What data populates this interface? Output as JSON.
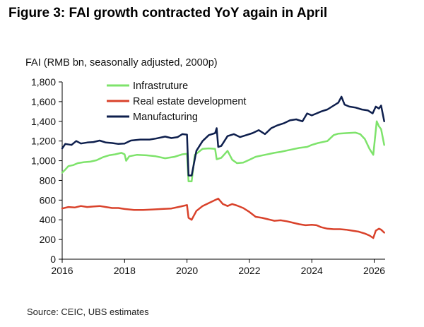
{
  "figure": {
    "title": "Figure 3: FAI growth contracted YoY again in April",
    "source": "Source: CEIC, UBS estimates"
  },
  "chart_data": {
    "type": "line",
    "title": "Figure 3: FAI growth contracted YoY again in April",
    "ylabel": "FAI (RMB bn, seasonally adjusted, 2000p)",
    "xlabel": "",
    "xlim": [
      2016,
      2026.35
    ],
    "ylim": [
      0,
      1800
    ],
    "xticks": [
      2016,
      2018,
      2020,
      2022,
      2024,
      2026
    ],
    "yticks": [
      0,
      200,
      400,
      600,
      800,
      1000,
      1200,
      1400,
      1600,
      1800
    ],
    "ytick_labels": [
      "0",
      "200",
      "400",
      "600",
      "800",
      "1,000",
      "1,200",
      "1,400",
      "1,600",
      "1,800"
    ],
    "grid": false,
    "legend": "top-left",
    "colors": {
      "infrastructure": "#7ee36b",
      "real_estate": "#d9422b",
      "manufacturing": "#0e1f4d"
    },
    "series": [
      {
        "name": "Infrastruture",
        "key": "infrastructure",
        "points": [
          [
            2016.0,
            880
          ],
          [
            2016.1,
            910
          ],
          [
            2016.2,
            945
          ],
          [
            2016.35,
            955
          ],
          [
            2016.5,
            975
          ],
          [
            2016.7,
            985
          ],
          [
            2016.9,
            990
          ],
          [
            2017.1,
            1005
          ],
          [
            2017.3,
            1035
          ],
          [
            2017.5,
            1055
          ],
          [
            2017.7,
            1065
          ],
          [
            2017.9,
            1080
          ],
          [
            2018.0,
            1065
          ],
          [
            2018.05,
            1000
          ],
          [
            2018.15,
            1045
          ],
          [
            2018.4,
            1060
          ],
          [
            2018.7,
            1055
          ],
          [
            2019.0,
            1045
          ],
          [
            2019.3,
            1025
          ],
          [
            2019.6,
            1040
          ],
          [
            2019.85,
            1065
          ],
          [
            2020.0,
            1070
          ],
          [
            2020.05,
            790
          ],
          [
            2020.15,
            790
          ],
          [
            2020.25,
            1060
          ],
          [
            2020.5,
            1120
          ],
          [
            2020.7,
            1125
          ],
          [
            2020.9,
            1120
          ],
          [
            2020.95,
            1015
          ],
          [
            2021.1,
            1030
          ],
          [
            2021.3,
            1100
          ],
          [
            2021.45,
            1010
          ],
          [
            2021.6,
            975
          ],
          [
            2021.8,
            980
          ],
          [
            2022.0,
            1010
          ],
          [
            2022.2,
            1040
          ],
          [
            2022.5,
            1060
          ],
          [
            2022.8,
            1080
          ],
          [
            2023.0,
            1090
          ],
          [
            2023.3,
            1110
          ],
          [
            2023.6,
            1130
          ],
          [
            2023.85,
            1140
          ],
          [
            2024.0,
            1160
          ],
          [
            2024.2,
            1180
          ],
          [
            2024.5,
            1200
          ],
          [
            2024.7,
            1260
          ],
          [
            2024.85,
            1275
          ],
          [
            2025.1,
            1280
          ],
          [
            2025.4,
            1285
          ],
          [
            2025.55,
            1270
          ],
          [
            2025.7,
            1220
          ],
          [
            2025.85,
            1120
          ],
          [
            2025.97,
            1060
          ],
          [
            2026.08,
            1400
          ],
          [
            2026.15,
            1350
          ],
          [
            2026.22,
            1320
          ],
          [
            2026.32,
            1160
          ]
        ]
      },
      {
        "name": "Real estate development",
        "key": "real_estate",
        "points": [
          [
            2016.0,
            515
          ],
          [
            2016.2,
            530
          ],
          [
            2016.4,
            525
          ],
          [
            2016.6,
            540
          ],
          [
            2016.8,
            530
          ],
          [
            2017.0,
            535
          ],
          [
            2017.2,
            540
          ],
          [
            2017.4,
            530
          ],
          [
            2017.6,
            520
          ],
          [
            2017.8,
            520
          ],
          [
            2018.0,
            510
          ],
          [
            2018.3,
            500
          ],
          [
            2018.6,
            500
          ],
          [
            2018.9,
            505
          ],
          [
            2019.2,
            510
          ],
          [
            2019.5,
            515
          ],
          [
            2019.8,
            535
          ],
          [
            2020.0,
            550
          ],
          [
            2020.05,
            420
          ],
          [
            2020.15,
            400
          ],
          [
            2020.3,
            490
          ],
          [
            2020.5,
            540
          ],
          [
            2020.7,
            570
          ],
          [
            2020.9,
            600
          ],
          [
            2021.0,
            615
          ],
          [
            2021.15,
            560
          ],
          [
            2021.3,
            540
          ],
          [
            2021.45,
            560
          ],
          [
            2021.6,
            545
          ],
          [
            2021.8,
            520
          ],
          [
            2022.0,
            480
          ],
          [
            2022.2,
            430
          ],
          [
            2022.4,
            420
          ],
          [
            2022.6,
            405
          ],
          [
            2022.8,
            390
          ],
          [
            2023.0,
            395
          ],
          [
            2023.2,
            385
          ],
          [
            2023.4,
            370
          ],
          [
            2023.6,
            355
          ],
          [
            2023.8,
            345
          ],
          [
            2024.0,
            350
          ],
          [
            2024.15,
            345
          ],
          [
            2024.3,
            325
          ],
          [
            2024.5,
            310
          ],
          [
            2024.7,
            305
          ],
          [
            2024.9,
            305
          ],
          [
            2025.1,
            300
          ],
          [
            2025.3,
            290
          ],
          [
            2025.5,
            280
          ],
          [
            2025.7,
            260
          ],
          [
            2025.85,
            240
          ],
          [
            2025.97,
            215
          ],
          [
            2026.05,
            290
          ],
          [
            2026.15,
            310
          ],
          [
            2026.22,
            300
          ],
          [
            2026.32,
            270
          ]
        ]
      },
      {
        "name": "Manufacturing",
        "key": "manufacturing",
        "points": [
          [
            2016.0,
            1125
          ],
          [
            2016.1,
            1170
          ],
          [
            2016.3,
            1160
          ],
          [
            2016.45,
            1200
          ],
          [
            2016.6,
            1175
          ],
          [
            2016.8,
            1185
          ],
          [
            2017.0,
            1190
          ],
          [
            2017.2,
            1205
          ],
          [
            2017.4,
            1185
          ],
          [
            2017.6,
            1180
          ],
          [
            2017.8,
            1170
          ],
          [
            2018.0,
            1175
          ],
          [
            2018.2,
            1205
          ],
          [
            2018.5,
            1215
          ],
          [
            2018.8,
            1215
          ],
          [
            2019.0,
            1225
          ],
          [
            2019.3,
            1245
          ],
          [
            2019.5,
            1230
          ],
          [
            2019.7,
            1240
          ],
          [
            2019.85,
            1270
          ],
          [
            2020.0,
            1265
          ],
          [
            2020.05,
            850
          ],
          [
            2020.15,
            850
          ],
          [
            2020.3,
            1100
          ],
          [
            2020.5,
            1200
          ],
          [
            2020.7,
            1260
          ],
          [
            2020.9,
            1280
          ],
          [
            2020.95,
            1330
          ],
          [
            2021.0,
            1140
          ],
          [
            2021.1,
            1150
          ],
          [
            2021.3,
            1250
          ],
          [
            2021.5,
            1270
          ],
          [
            2021.7,
            1240
          ],
          [
            2021.9,
            1260
          ],
          [
            2022.1,
            1280
          ],
          [
            2022.3,
            1310
          ],
          [
            2022.5,
            1270
          ],
          [
            2022.7,
            1330
          ],
          [
            2022.9,
            1360
          ],
          [
            2023.1,
            1380
          ],
          [
            2023.3,
            1410
          ],
          [
            2023.5,
            1420
          ],
          [
            2023.7,
            1400
          ],
          [
            2023.85,
            1480
          ],
          [
            2024.0,
            1460
          ],
          [
            2024.15,
            1480
          ],
          [
            2024.3,
            1500
          ],
          [
            2024.5,
            1520
          ],
          [
            2024.7,
            1560
          ],
          [
            2024.85,
            1590
          ],
          [
            2024.95,
            1650
          ],
          [
            2025.05,
            1570
          ],
          [
            2025.2,
            1550
          ],
          [
            2025.4,
            1540
          ],
          [
            2025.6,
            1520
          ],
          [
            2025.8,
            1510
          ],
          [
            2025.95,
            1480
          ],
          [
            2026.05,
            1550
          ],
          [
            2026.15,
            1530
          ],
          [
            2026.22,
            1560
          ],
          [
            2026.32,
            1400
          ]
        ]
      }
    ]
  }
}
